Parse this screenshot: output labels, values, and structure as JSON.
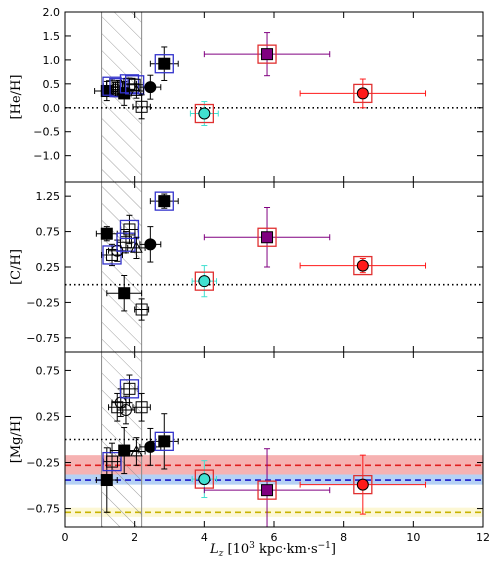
{
  "chart_data": {
    "type": "scatter",
    "xlabel": "L_z [10^3 kpc·km·s^-1]",
    "xlim": [
      0,
      12
    ],
    "xticks": [
      0,
      2,
      4,
      6,
      8,
      10,
      12
    ],
    "xtick_labels": [
      "0",
      "2",
      "4",
      "6",
      "8",
      "10",
      "12"
    ],
    "shaded_region": {
      "x0": 1.05,
      "x1": 2.2,
      "pattern": "hatched"
    },
    "panels": [
      {
        "ylabel": "[He/H]",
        "ylim": [
          -1.55,
          2.0
        ],
        "yticks": [
          -1.0,
          -0.5,
          0.0,
          0.5,
          1.0,
          1.5,
          2.0
        ],
        "ytick_labels": [
          "−1.0",
          "−0.5",
          "0.0",
          "0.5",
          "1.0",
          "1.5",
          "2.0"
        ],
        "reference_line": {
          "y": 0.0,
          "color": "#000000",
          "style": "dotted"
        },
        "bands": [],
        "points": [
          {
            "x": 1.2,
            "y": 0.35,
            "xerr": 0.35,
            "yerr": 0.2,
            "marker": "square",
            "fill": "#000000",
            "box": ""
          },
          {
            "x": 1.35,
            "y": 0.45,
            "xerr": 0.25,
            "yerr": 0.15,
            "marker": "square",
            "fill": "none",
            "box": "#3333cc"
          },
          {
            "x": 1.45,
            "y": 0.38,
            "xerr": 0.2,
            "yerr": 0.15,
            "marker": "circle",
            "fill": "none",
            "box": ""
          },
          {
            "x": 1.55,
            "y": 0.42,
            "xerr": 0.25,
            "yerr": 0.15,
            "marker": "square",
            "fill": "none",
            "box": "#3333cc"
          },
          {
            "x": 1.7,
            "y": 0.3,
            "xerr": 0.2,
            "yerr": 0.25,
            "marker": "square",
            "fill": "#000000",
            "box": ""
          },
          {
            "x": 1.85,
            "y": 0.5,
            "xerr": 0.2,
            "yerr": 0.12,
            "marker": "square",
            "fill": "none",
            "box": "#3333cc"
          },
          {
            "x": 2.0,
            "y": 0.48,
            "xerr": 0.25,
            "yerr": 0.12,
            "marker": "square",
            "fill": "none",
            "box": "#3333cc"
          },
          {
            "x": 2.05,
            "y": 0.35,
            "xerr": 0.2,
            "yerr": 0.15,
            "marker": "triangle",
            "fill": "none",
            "box": ""
          },
          {
            "x": 2.2,
            "y": 0.02,
            "xerr": 0.25,
            "yerr": 0.25,
            "marker": "square",
            "fill": "none",
            "box": ""
          },
          {
            "x": 2.45,
            "y": 0.43,
            "xerr": 0.3,
            "yerr": 0.25,
            "marker": "circle",
            "fill": "#000000",
            "box": ""
          },
          {
            "x": 2.85,
            "y": 0.92,
            "xerr": 0.4,
            "yerr": 0.35,
            "marker": "square",
            "fill": "#000000",
            "box": "#3333cc"
          },
          {
            "x": 4.0,
            "y": -0.12,
            "xerr": 0.4,
            "yerr": 0.25,
            "marker": "circle",
            "fill": "#40e0d0",
            "box": "#e03030"
          },
          {
            "x": 5.8,
            "y": 1.12,
            "xerr": 1.8,
            "yerr": 0.45,
            "marker": "square",
            "fill": "#800080",
            "box": "#e03030"
          },
          {
            "x": 8.55,
            "y": 0.3,
            "xerr": 1.8,
            "yerr": 0.3,
            "marker": "circle",
            "fill": "#ff1a1a",
            "box": "#e03030"
          }
        ]
      },
      {
        "ylabel": "[C/H]",
        "ylim": [
          -0.95,
          1.45
        ],
        "yticks": [
          -0.75,
          -0.25,
          0.25,
          0.75,
          1.25
        ],
        "ytick_labels": [
          "−0.75",
          "−0.25",
          "0.25",
          "0.75",
          "1.25"
        ],
        "reference_line": {
          "y": 0.0,
          "color": "#000000",
          "style": "dotted"
        },
        "bands": [],
        "points": [
          {
            "x": 1.2,
            "y": 0.72,
            "xerr": 0.3,
            "yerr": 0.1,
            "marker": "square",
            "fill": "#000000",
            "box": ""
          },
          {
            "x": 1.35,
            "y": 0.42,
            "xerr": 0.3,
            "yerr": 0.15,
            "marker": "square",
            "fill": "none",
            "box": "#3333cc"
          },
          {
            "x": 1.5,
            "y": 0.48,
            "xerr": 0.25,
            "yerr": 0.15,
            "marker": "circle",
            "fill": "none",
            "box": ""
          },
          {
            "x": 1.7,
            "y": -0.12,
            "xerr": 0.5,
            "yerr": 0.25,
            "marker": "square",
            "fill": "#000000",
            "box": ""
          },
          {
            "x": 1.75,
            "y": 0.6,
            "xerr": 0.25,
            "yerr": 0.15,
            "marker": "square",
            "fill": "none",
            "box": "#3333cc"
          },
          {
            "x": 1.85,
            "y": 0.78,
            "xerr": 0.25,
            "yerr": 0.2,
            "marker": "square",
            "fill": "none",
            "box": "#3333cc"
          },
          {
            "x": 2.05,
            "y": 0.52,
            "xerr": 0.25,
            "yerr": 0.15,
            "marker": "triangle",
            "fill": "none",
            "box": ""
          },
          {
            "x": 2.2,
            "y": -0.35,
            "xerr": 0.2,
            "yerr": 0.15,
            "marker": "square",
            "fill": "none",
            "box": ""
          },
          {
            "x": 2.45,
            "y": 0.57,
            "xerr": 0.3,
            "yerr": 0.25,
            "marker": "circle",
            "fill": "#000000",
            "box": ""
          },
          {
            "x": 2.85,
            "y": 1.18,
            "xerr": 0.4,
            "yerr": 0.1,
            "marker": "square",
            "fill": "#000000",
            "box": "#3333cc"
          },
          {
            "x": 4.0,
            "y": 0.05,
            "xerr": 0.35,
            "yerr": 0.22,
            "marker": "circle",
            "fill": "#40e0d0",
            "box": "#e03030"
          },
          {
            "x": 5.8,
            "y": 0.67,
            "xerr": 1.8,
            "yerr": 0.42,
            "marker": "square",
            "fill": "#800080",
            "box": "#e03030"
          },
          {
            "x": 8.55,
            "y": 0.27,
            "xerr": 1.8,
            "yerr": 0.1,
            "marker": "circle",
            "fill": "#ff1a1a",
            "box": "#e03030"
          }
        ]
      },
      {
        "ylabel": "[Mg/H]",
        "ylim": [
          -0.95,
          0.95
        ],
        "yticks": [
          -0.75,
          -0.25,
          0.25,
          0.75
        ],
        "ytick_labels": [
          "−0.75",
          "−0.25",
          "0.25",
          "0.75"
        ],
        "reference_line": {
          "y": 0.0,
          "color": "#000000",
          "style": "dotted"
        },
        "bands": [
          {
            "y": -0.28,
            "y0": -0.38,
            "y1": -0.17,
            "band_color": "#f5a5a5",
            "line_color": "#e02020"
          },
          {
            "y": -0.44,
            "y0": -0.49,
            "y1": -0.38,
            "band_color": "#a9c9f2",
            "line_color": "#1a1acc"
          },
          {
            "y": -0.79,
            "y0": -0.84,
            "y1": -0.74,
            "band_color": "#fbf6cc",
            "line_color": "#c8b400"
          }
        ],
        "points": [
          {
            "x": 1.2,
            "y": -0.44,
            "xerr": 0.3,
            "yerr": 0.35,
            "marker": "square",
            "fill": "#000000",
            "box": ""
          },
          {
            "x": 1.35,
            "y": -0.24,
            "xerr": 0.25,
            "yerr": 0.2,
            "marker": "square",
            "fill": "none",
            "box": "#3333cc"
          },
          {
            "x": 1.5,
            "y": 0.35,
            "xerr": 0.25,
            "yerr": 0.15,
            "marker": "square",
            "fill": "none",
            "box": ""
          },
          {
            "x": 1.6,
            "y": 0.4,
            "xerr": 0.25,
            "yerr": 0.15,
            "marker": "circle",
            "fill": "none",
            "box": ""
          },
          {
            "x": 1.7,
            "y": -0.12,
            "xerr": 0.4,
            "yerr": 0.25,
            "marker": "square",
            "fill": "#000000",
            "box": ""
          },
          {
            "x": 1.75,
            "y": 0.32,
            "xerr": 0.25,
            "yerr": 0.15,
            "marker": "circle",
            "fill": "none",
            "box": ""
          },
          {
            "x": 1.85,
            "y": 0.55,
            "xerr": 0.25,
            "yerr": 0.15,
            "marker": "square",
            "fill": "none",
            "box": "#3333cc"
          },
          {
            "x": 2.05,
            "y": -0.13,
            "xerr": 0.25,
            "yerr": 0.15,
            "marker": "triangle",
            "fill": "none",
            "box": ""
          },
          {
            "x": 2.2,
            "y": 0.35,
            "xerr": 0.25,
            "yerr": 0.15,
            "marker": "square",
            "fill": "none",
            "box": ""
          },
          {
            "x": 2.45,
            "y": -0.08,
            "xerr": 0.3,
            "yerr": 0.2,
            "marker": "circle",
            "fill": "#000000",
            "box": ""
          },
          {
            "x": 2.85,
            "y": -0.02,
            "xerr": 0.4,
            "yerr": 0.3,
            "marker": "square",
            "fill": "#000000",
            "box": "#3333cc"
          },
          {
            "x": 4.0,
            "y": -0.43,
            "xerr": 0.35,
            "yerr": 0.2,
            "marker": "circle",
            "fill": "#40e0d0",
            "box": "#e03030"
          },
          {
            "x": 5.8,
            "y": -0.55,
            "xerr": 1.8,
            "yerr": 0.45,
            "marker": "square",
            "fill": "#800080",
            "box": "#e03030"
          },
          {
            "x": 8.55,
            "y": -0.49,
            "xerr": 1.8,
            "yerr": 0.32,
            "marker": "circle",
            "fill": "#ff1a1a",
            "box": "#e03030"
          }
        ]
      }
    ]
  }
}
